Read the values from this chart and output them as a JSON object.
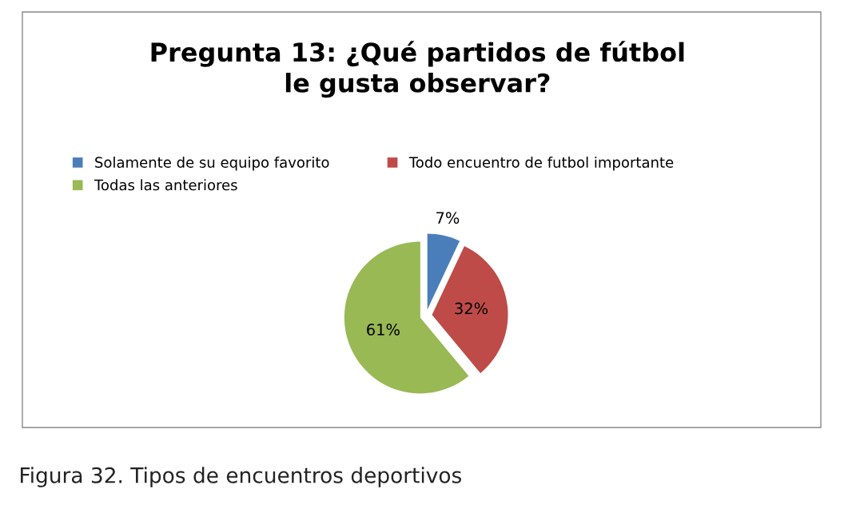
{
  "chart_data": {
    "type": "pie",
    "title": "Pregunta 13: ¿Qué partidos de fútbol\nle gusta observar?",
    "categories": [
      "Solamente de su equipo favorito",
      "Todo encuentro de futbol importante",
      "Todas las anteriores"
    ],
    "values": [
      7,
      32,
      61
    ],
    "colors": [
      "#4a7ebb",
      "#be4b48",
      "#98b954"
    ],
    "value_labels": [
      "7%",
      "32%",
      "61%"
    ],
    "legend": "top",
    "annotations": [
      "Figura 32. Tipos de encuentros deportivos"
    ]
  }
}
